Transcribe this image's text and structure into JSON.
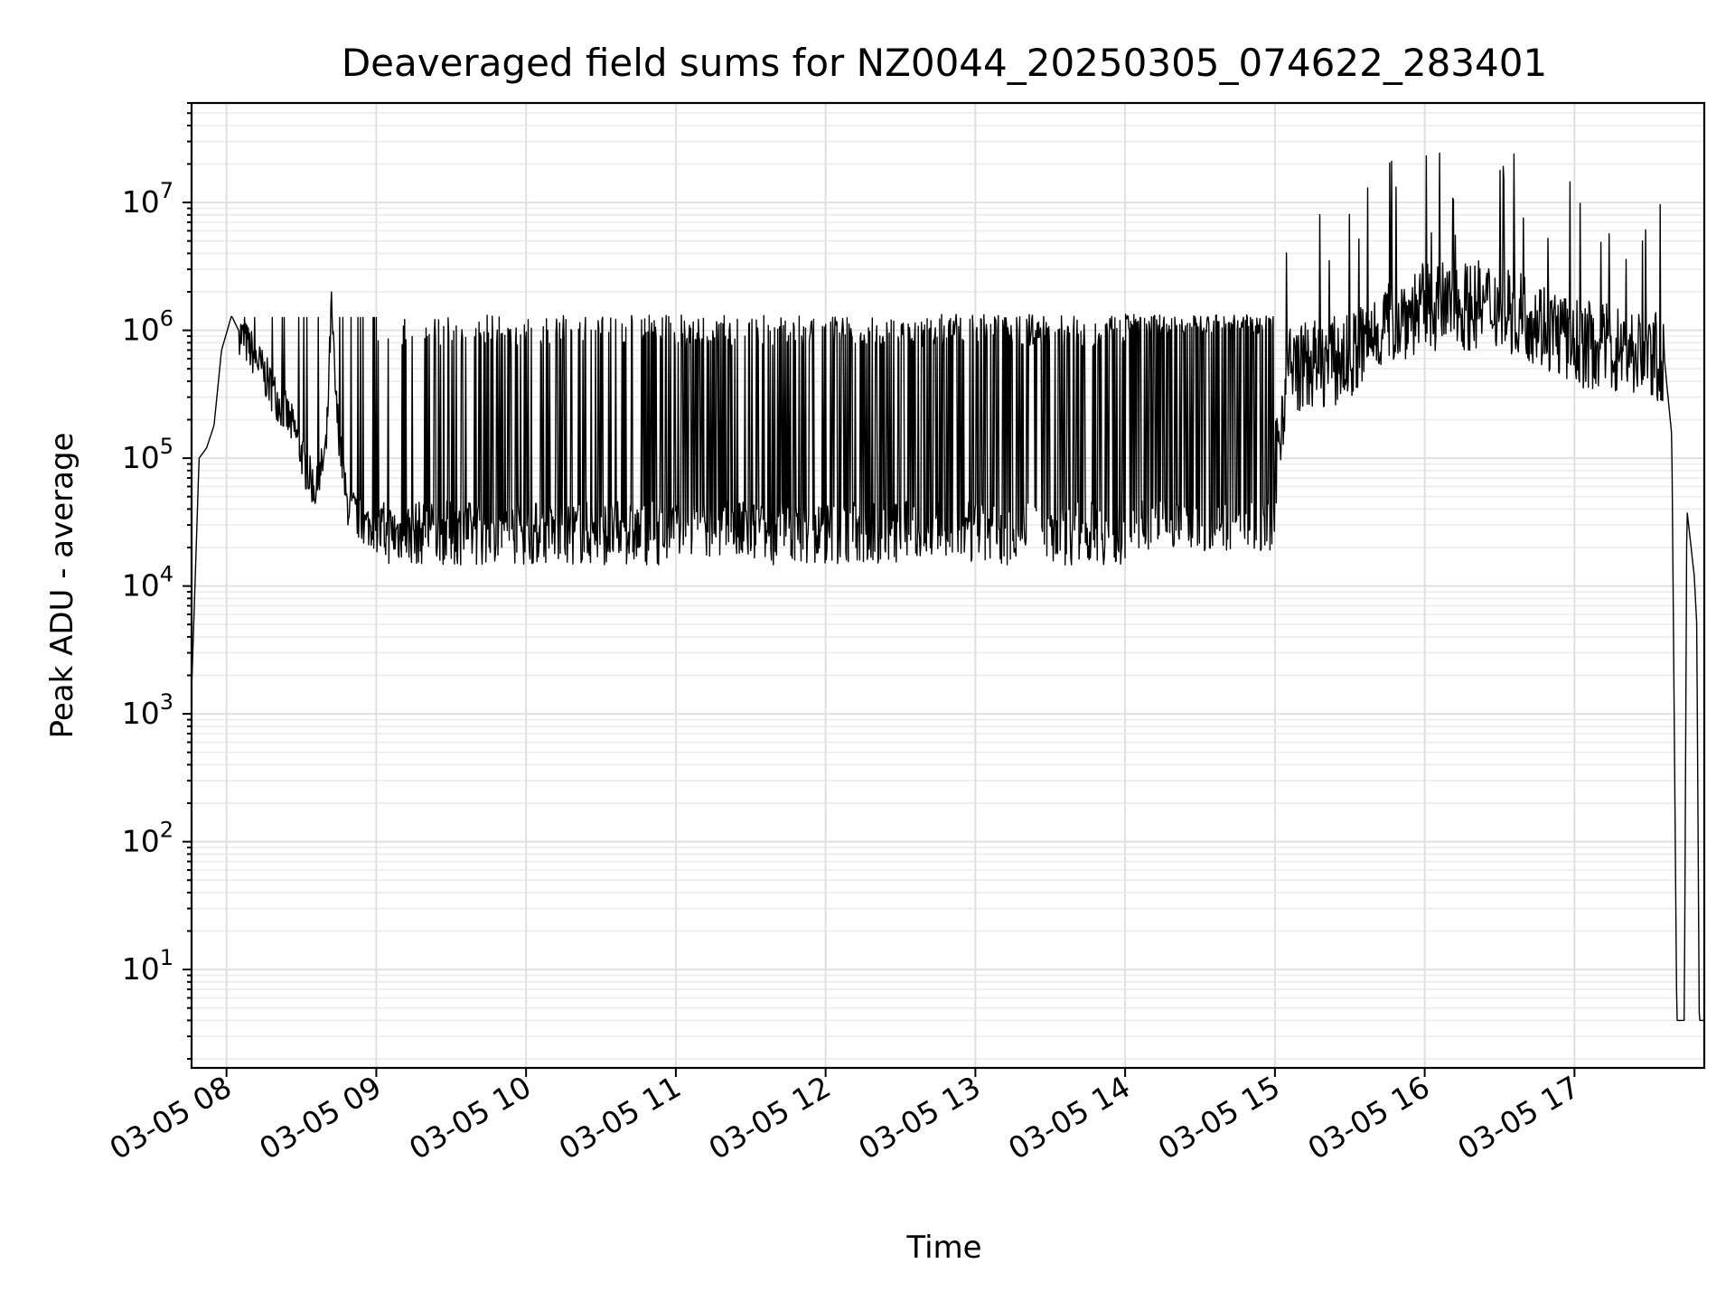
{
  "chart_data": {
    "type": "line",
    "title": "Deaveraged field sums for NZ0044_20250305_074622_283401",
    "xlabel": "Time",
    "ylabel": "Peak ADU - average",
    "yscale": "log",
    "ylim": [
      1.7,
      60000000
    ],
    "xlim": [
      "03-05 07:46",
      "03-05 17:52"
    ],
    "grid": true,
    "x_ticks": [
      "03-05 08",
      "03-05 09",
      "03-05 10",
      "03-05 11",
      "03-05 12",
      "03-05 13",
      "03-05 14",
      "03-05 15",
      "03-05 16",
      "03-05 17"
    ],
    "y_tick_exponents": [
      "1",
      "2",
      "3",
      "4",
      "5",
      "6",
      "7"
    ],
    "series": [
      {
        "color": "#000000",
        "style": "dense noisy line",
        "points": [
          [
            "03-05 07:46",
            1500
          ],
          [
            "03-05 07:49",
            100000
          ],
          [
            "03-05 07:52",
            120000
          ],
          [
            "03-05 07:55",
            180000
          ],
          [
            "03-05 07:58",
            700000
          ],
          [
            "03-05 08:02",
            1300000
          ],
          [
            "03-05 08:06",
            900000
          ],
          [
            "03-05 08:12",
            600000
          ],
          [
            "03-05 08:18",
            350000
          ],
          [
            "03-05 08:24",
            220000
          ],
          [
            "03-05 08:28",
            150000
          ],
          [
            "03-05 08:32",
            80000
          ],
          [
            "03-05 08:36",
            55000
          ],
          [
            "03-05 08:40",
            120000
          ],
          [
            "03-05 08:42",
            1500000
          ],
          [
            "03-05 08:44",
            250000
          ],
          [
            "03-05 08:48",
            45000
          ],
          [
            "03-05 08:55",
            30000
          ],
          [
            "03-05 09:30",
            26000
          ],
          [
            "03-05 10:30",
            27000
          ],
          [
            "03-05 11:30",
            28000
          ],
          [
            "03-05 12:30",
            27000
          ],
          [
            "03-05 13:30",
            30000
          ],
          [
            "03-05 14:00",
            800000
          ],
          [
            "03-05 14:30",
            900000
          ],
          [
            "03-05 14:55",
            900000
          ],
          [
            "03-05 15:00",
            80000
          ],
          [
            "03-05 15:05",
            500000
          ],
          [
            "03-05 15:30",
            600000
          ],
          [
            "03-05 15:45",
            1200000
          ],
          [
            "03-05 16:00",
            1500000
          ],
          [
            "03-05 16:30",
            1600000
          ],
          [
            "03-05 16:45",
            1200000
          ],
          [
            "03-05 17:00",
            800000
          ],
          [
            "03-05 17:20",
            700000
          ],
          [
            "03-05 17:36",
            600000
          ],
          [
            "03-05 17:39",
            150000
          ],
          [
            "03-05 17:41",
            4
          ],
          [
            "03-05 17:44",
            4
          ],
          [
            "03-05 17:45",
            40000
          ],
          [
            "03-05 17:48",
            12000
          ],
          [
            "03-05 17:49",
            5000
          ],
          [
            "03-05 17:50",
            4
          ],
          [
            "03-05 17:52",
            4
          ]
        ]
      }
    ]
  }
}
